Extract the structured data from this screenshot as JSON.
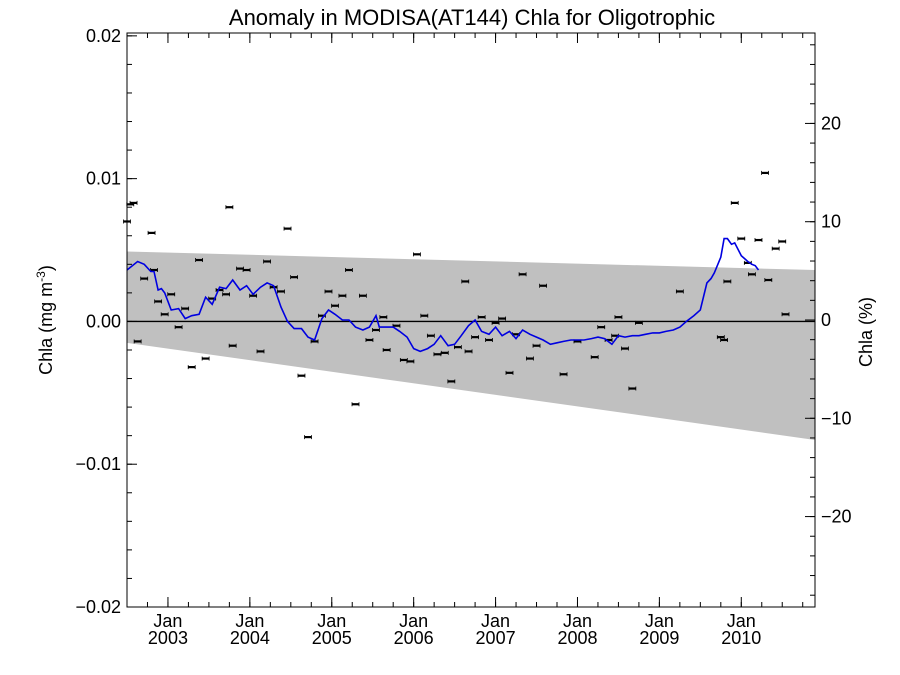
{
  "chart_data": {
    "type": "scatter",
    "title": "Anomaly in MODISA(AT144) Chla for Oligotrophic",
    "ylabel_left": "Chla (mg m",
    "ylabel_left_sup": "-3",
    "ylabel_left_close": ")",
    "ylabel_right": "Chla (%)",
    "xlim": [
      2002.5,
      2010.9
    ],
    "ylim": [
      -0.02,
      0.0202
    ],
    "ylim_right": [
      -29.2,
      29.2
    ],
    "grid": false,
    "x_ticks": [
      {
        "x": 2003.0,
        "month": "Jan",
        "year": "2003"
      },
      {
        "x": 2004.0,
        "month": "Jan",
        "year": "2004"
      },
      {
        "x": 2005.0,
        "month": "Jan",
        "year": "2005"
      },
      {
        "x": 2006.0,
        "month": "Jan",
        "year": "2006"
      },
      {
        "x": 2007.0,
        "month": "Jan",
        "year": "2007"
      },
      {
        "x": 2008.0,
        "month": "Jan",
        "year": "2008"
      },
      {
        "x": 2009.0,
        "month": "Jan",
        "year": "2009"
      },
      {
        "x": 2010.0,
        "month": "Jan",
        "year": "2010"
      }
    ],
    "y_ticks_left": [
      {
        "v": 0.02,
        "label": "0.02"
      },
      {
        "v": 0.01,
        "label": "0.01"
      },
      {
        "v": 0.0,
        "label": "0.00"
      },
      {
        "v": -0.01,
        "label": "−0.01"
      },
      {
        "v": -0.02,
        "label": "−0.02"
      }
    ],
    "y_ticks_right": [
      {
        "v": 20,
        "label": "20"
      },
      {
        "v": 10,
        "label": "10"
      },
      {
        "v": 0,
        "label": "0"
      },
      {
        "v": -10,
        "label": "−10"
      },
      {
        "v": -20,
        "label": "−20"
      }
    ],
    "uncertainty_band": {
      "x": [
        2002.5,
        2010.9
      ],
      "upper": [
        0.0049,
        0.0036
      ],
      "lower": [
        -0.0015,
        -0.0083
      ],
      "color": "#c0c0c0"
    },
    "zero_line": {
      "y": 0.0,
      "color": "#000000"
    },
    "points": [
      [
        2002.5,
        0.007
      ],
      [
        2002.54,
        0.0082
      ],
      [
        2002.58,
        0.0083
      ],
      [
        2002.63,
        -0.0014
      ],
      [
        2002.71,
        0.003
      ],
      [
        2002.8,
        0.0062
      ],
      [
        2002.83,
        0.0036
      ],
      [
        2002.88,
        0.0014
      ],
      [
        2002.96,
        0.0005
      ],
      [
        2003.04,
        0.0019
      ],
      [
        2003.13,
        -0.0004
      ],
      [
        2003.21,
        0.0009
      ],
      [
        2003.29,
        -0.0032
      ],
      [
        2003.38,
        0.0043
      ],
      [
        2003.46,
        -0.0026
      ],
      [
        2003.54,
        0.0016
      ],
      [
        2003.63,
        0.0022
      ],
      [
        2003.71,
        0.0019
      ],
      [
        2003.75,
        0.008
      ],
      [
        2003.79,
        -0.0017
      ],
      [
        2003.88,
        0.0037
      ],
      [
        2003.96,
        0.0036
      ],
      [
        2004.04,
        0.0018
      ],
      [
        2004.13,
        -0.0021
      ],
      [
        2004.21,
        0.0042
      ],
      [
        2004.29,
        0.0024
      ],
      [
        2004.38,
        0.0021
      ],
      [
        2004.46,
        0.0065
      ],
      [
        2004.54,
        0.0031
      ],
      [
        2004.63,
        -0.0038
      ],
      [
        2004.71,
        -0.0081
      ],
      [
        2004.79,
        -0.0014
      ],
      [
        2004.88,
        0.0004
      ],
      [
        2004.96,
        0.0021
      ],
      [
        2005.04,
        0.0011
      ],
      [
        2005.13,
        0.0018
      ],
      [
        2005.21,
        0.0036
      ],
      [
        2005.29,
        -0.0058
      ],
      [
        2005.38,
        0.0018
      ],
      [
        2005.46,
        -0.0013
      ],
      [
        2005.54,
        -0.0006
      ],
      [
        2005.63,
        0.0003
      ],
      [
        2005.67,
        -0.002
      ],
      [
        2005.79,
        -0.0003
      ],
      [
        2005.88,
        -0.0027
      ],
      [
        2005.96,
        -0.0028
      ],
      [
        2006.04,
        0.0047
      ],
      [
        2006.13,
        0.0004
      ],
      [
        2006.21,
        -0.001
      ],
      [
        2006.29,
        -0.0023
      ],
      [
        2006.38,
        -0.0022
      ],
      [
        2006.46,
        -0.0042
      ],
      [
        2006.54,
        -0.0018
      ],
      [
        2006.63,
        0.0028
      ],
      [
        2006.67,
        -0.0021
      ],
      [
        2006.75,
        -0.0011
      ],
      [
        2006.83,
        0.0003
      ],
      [
        2006.92,
        -0.0013
      ],
      [
        2007.0,
        -0.0001
      ],
      [
        2007.08,
        0.0002
      ],
      [
        2007.17,
        -0.0036
      ],
      [
        2007.25,
        -0.0009
      ],
      [
        2007.33,
        0.0033
      ],
      [
        2007.42,
        -0.0026
      ],
      [
        2007.5,
        -0.0017
      ],
      [
        2007.58,
        0.0025
      ],
      [
        2007.83,
        -0.0037
      ],
      [
        2008.0,
        -0.0014
      ],
      [
        2008.21,
        -0.0025
      ],
      [
        2008.29,
        -0.0004
      ],
      [
        2008.38,
        -0.0013
      ],
      [
        2008.46,
        -0.001
      ],
      [
        2008.5,
        0.0003
      ],
      [
        2008.58,
        -0.0019
      ],
      [
        2008.67,
        -0.0047
      ],
      [
        2008.75,
        -0.0001
      ],
      [
        2009.25,
        0.0021
      ],
      [
        2009.75,
        -0.0011
      ],
      [
        2009.79,
        -0.0013
      ],
      [
        2009.83,
        0.0028
      ],
      [
        2009.92,
        0.0083
      ],
      [
        2010.0,
        0.0058
      ],
      [
        2010.08,
        0.0041
      ],
      [
        2010.13,
        0.0033
      ],
      [
        2010.21,
        0.0057
      ],
      [
        2010.29,
        0.0104
      ],
      [
        2010.33,
        0.0029
      ],
      [
        2010.42,
        0.0051
      ],
      [
        2010.5,
        0.0056
      ],
      [
        2010.54,
        0.0005
      ]
    ],
    "smoothed_line": {
      "color": "#0000e0",
      "points": [
        [
          2002.5,
          0.0036
        ],
        [
          2002.63,
          0.0042
        ],
        [
          2002.71,
          0.004
        ],
        [
          2002.79,
          0.0035
        ],
        [
          2002.83,
          0.0035
        ],
        [
          2002.88,
          0.0022
        ],
        [
          2002.92,
          0.0023
        ],
        [
          2002.96,
          0.002
        ],
        [
          2003.04,
          0.0008
        ],
        [
          2003.13,
          0.0009
        ],
        [
          2003.21,
          0.0002
        ],
        [
          2003.29,
          0.0004
        ],
        [
          2003.38,
          0.0005
        ],
        [
          2003.46,
          0.0017
        ],
        [
          2003.54,
          0.0012
        ],
        [
          2003.63,
          0.0024
        ],
        [
          2003.71,
          0.0023
        ],
        [
          2003.79,
          0.0029
        ],
        [
          2003.88,
          0.0022
        ],
        [
          2003.96,
          0.0025
        ],
        [
          2004.04,
          0.0019
        ],
        [
          2004.13,
          0.0024
        ],
        [
          2004.21,
          0.0027
        ],
        [
          2004.29,
          0.0025
        ],
        [
          2004.38,
          0.001
        ],
        [
          2004.46,
          0.0
        ],
        [
          2004.54,
          -0.0005
        ],
        [
          2004.63,
          -0.0005
        ],
        [
          2004.71,
          -0.0011
        ],
        [
          2004.79,
          -0.0013
        ],
        [
          2004.88,
          0.0002
        ],
        [
          2004.96,
          0.0008
        ],
        [
          2005.04,
          0.0005
        ],
        [
          2005.13,
          0.0001
        ],
        [
          2005.21,
          0.0001
        ],
        [
          2005.29,
          -0.0004
        ],
        [
          2005.38,
          -0.0006
        ],
        [
          2005.46,
          -0.0004
        ],
        [
          2005.54,
          0.0004
        ],
        [
          2005.58,
          -0.0004
        ],
        [
          2005.67,
          -0.0004
        ],
        [
          2005.75,
          -0.0004
        ],
        [
          2005.83,
          -0.0007
        ],
        [
          2005.92,
          -0.0011
        ],
        [
          2006.0,
          -0.0019
        ],
        [
          2006.08,
          -0.0021
        ],
        [
          2006.17,
          -0.0019
        ],
        [
          2006.25,
          -0.0016
        ],
        [
          2006.33,
          -0.001
        ],
        [
          2006.42,
          -0.0017
        ],
        [
          2006.5,
          -0.0016
        ],
        [
          2006.58,
          -0.001
        ],
        [
          2006.67,
          -0.0003
        ],
        [
          2006.75,
          0.0001
        ],
        [
          2006.83,
          -0.0007
        ],
        [
          2006.92,
          -0.0009
        ],
        [
          2007.0,
          -0.0004
        ],
        [
          2007.08,
          -0.001
        ],
        [
          2007.17,
          -0.0007
        ],
        [
          2007.25,
          -0.0012
        ],
        [
          2007.33,
          -0.0006
        ],
        [
          2007.42,
          -0.0009
        ],
        [
          2007.5,
          -0.0011
        ],
        [
          2007.58,
          -0.0013
        ],
        [
          2007.67,
          -0.0016
        ],
        [
          2007.75,
          -0.0015
        ],
        [
          2007.83,
          -0.0014
        ],
        [
          2007.92,
          -0.0013
        ],
        [
          2008.0,
          -0.0013
        ],
        [
          2008.08,
          -0.0013
        ],
        [
          2008.17,
          -0.0012
        ],
        [
          2008.25,
          -0.0011
        ],
        [
          2008.33,
          -0.0012
        ],
        [
          2008.42,
          -0.0016
        ],
        [
          2008.5,
          -0.001
        ],
        [
          2008.58,
          -0.0011
        ],
        [
          2008.67,
          -0.001
        ],
        [
          2008.75,
          -0.001
        ],
        [
          2008.83,
          -0.0009
        ],
        [
          2008.92,
          -0.0008
        ],
        [
          2009.0,
          -0.0008
        ],
        [
          2009.08,
          -0.0007
        ],
        [
          2009.17,
          -0.0006
        ],
        [
          2009.25,
          -0.0004
        ],
        [
          2009.33,
          0.0
        ],
        [
          2009.42,
          0.0004
        ],
        [
          2009.5,
          0.0008
        ],
        [
          2009.58,
          0.0027
        ],
        [
          2009.63,
          0.003
        ],
        [
          2009.67,
          0.0034
        ],
        [
          2009.75,
          0.0045
        ],
        [
          2009.79,
          0.0058
        ],
        [
          2009.83,
          0.0058
        ],
        [
          2009.88,
          0.0054
        ],
        [
          2009.92,
          0.0055
        ],
        [
          2010.0,
          0.0046
        ],
        [
          2010.04,
          0.0044
        ],
        [
          2010.08,
          0.0042
        ],
        [
          2010.13,
          0.004
        ],
        [
          2010.17,
          0.0039
        ],
        [
          2010.21,
          0.0036
        ]
      ]
    },
    "point_color": "#000000"
  }
}
